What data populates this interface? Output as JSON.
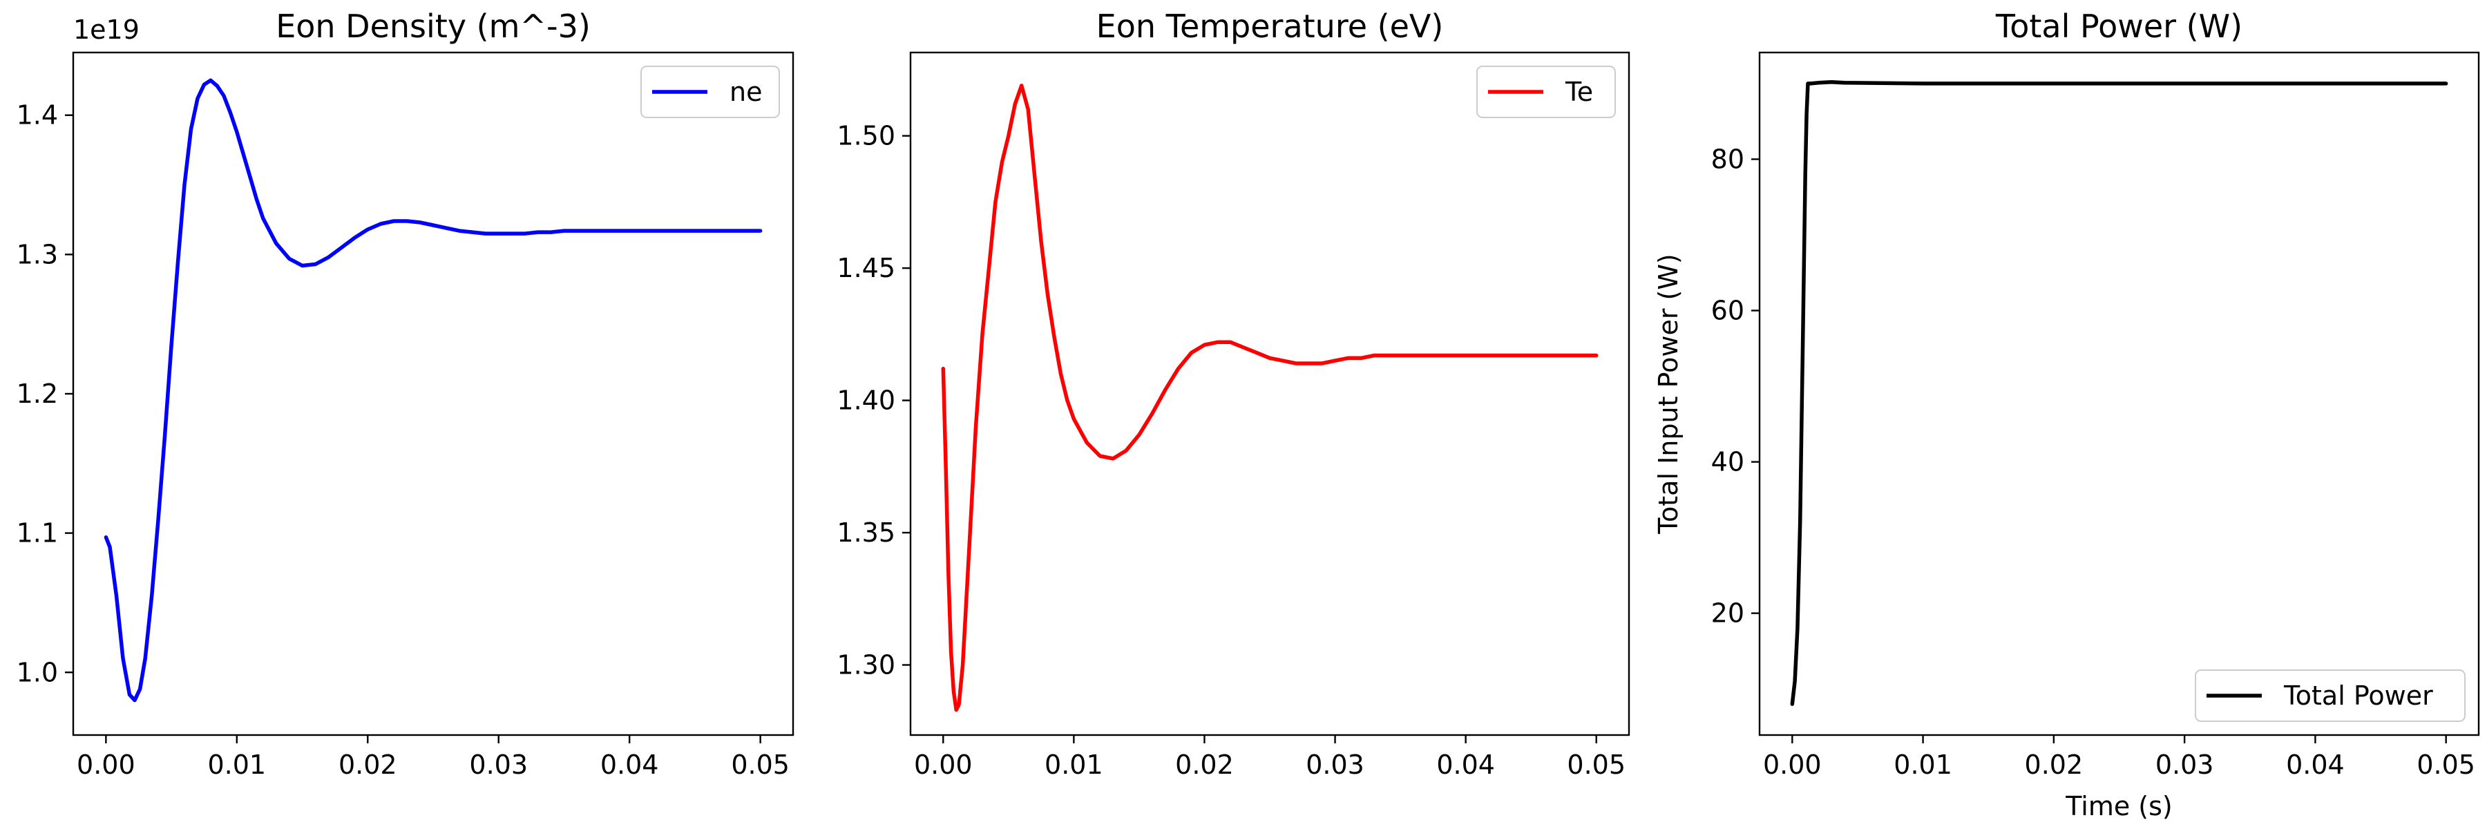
{
  "chart_data": [
    {
      "type": "line",
      "title": "Eon Density (m^-3)",
      "xlabel": "",
      "ylabel": "",
      "offset_text": "1e19",
      "xlim": [
        -0.0025,
        0.0525
      ],
      "ylim": [
        0.955,
        1.445
      ],
      "xticks": [
        0.0,
        0.01,
        0.02,
        0.03,
        0.04,
        0.05
      ],
      "xtick_labels": [
        "0.00",
        "0.01",
        "0.02",
        "0.03",
        "0.04",
        "0.05"
      ],
      "yticks": [
        1.0,
        1.1,
        1.2,
        1.3,
        1.4
      ],
      "ytick_labels": [
        "1.0",
        "1.1",
        "1.2",
        "1.3",
        "1.4"
      ],
      "legend": "top-right",
      "grid": false,
      "series": [
        {
          "name": "ne",
          "color": "#0000ff",
          "x": [
            0.0,
            0.0003,
            0.0008,
            0.0013,
            0.0018,
            0.0022,
            0.0026,
            0.003,
            0.0035,
            0.004,
            0.0045,
            0.005,
            0.0055,
            0.006,
            0.0065,
            0.007,
            0.0075,
            0.008,
            0.0085,
            0.009,
            0.0095,
            0.01,
            0.0105,
            0.011,
            0.0115,
            0.012,
            0.013,
            0.014,
            0.015,
            0.016,
            0.017,
            0.018,
            0.019,
            0.02,
            0.021,
            0.022,
            0.023,
            0.024,
            0.025,
            0.026,
            0.027,
            0.028,
            0.029,
            0.03,
            0.031,
            0.032,
            0.033,
            0.034,
            0.035,
            0.036,
            0.037,
            0.038,
            0.039,
            0.04,
            0.041,
            0.042,
            0.043,
            0.044,
            0.045,
            0.046,
            0.047,
            0.048,
            0.049,
            0.05
          ],
          "y": [
            1.097,
            1.09,
            1.055,
            1.01,
            0.984,
            0.98,
            0.988,
            1.01,
            1.055,
            1.11,
            1.17,
            1.235,
            1.295,
            1.35,
            1.39,
            1.412,
            1.422,
            1.425,
            1.421,
            1.414,
            1.402,
            1.388,
            1.372,
            1.356,
            1.34,
            1.326,
            1.308,
            1.297,
            1.292,
            1.293,
            1.298,
            1.305,
            1.312,
            1.318,
            1.322,
            1.324,
            1.324,
            1.323,
            1.321,
            1.319,
            1.317,
            1.316,
            1.315,
            1.315,
            1.315,
            1.315,
            1.316,
            1.316,
            1.317,
            1.317,
            1.317,
            1.317,
            1.317,
            1.317,
            1.317,
            1.317,
            1.317,
            1.317,
            1.317,
            1.317,
            1.317,
            1.317,
            1.317,
            1.317
          ]
        }
      ]
    },
    {
      "type": "line",
      "title": "Eon Temperature (eV)",
      "xlabel": "",
      "ylabel": "",
      "xlim": [
        -0.0025,
        0.0525
      ],
      "ylim": [
        1.2735,
        1.5315
      ],
      "xticks": [
        0.0,
        0.01,
        0.02,
        0.03,
        0.04,
        0.05
      ],
      "xtick_labels": [
        "0.00",
        "0.01",
        "0.02",
        "0.03",
        "0.04",
        "0.05"
      ],
      "yticks": [
        1.3,
        1.35,
        1.4,
        1.45,
        1.5
      ],
      "ytick_labels": [
        "1.30",
        "1.35",
        "1.40",
        "1.45",
        "1.50"
      ],
      "legend": "top-right",
      "grid": false,
      "series": [
        {
          "name": "Te",
          "color": "#ff0000",
          "x": [
            0.0,
            0.0002,
            0.0004,
            0.0006,
            0.0008,
            0.001,
            0.0012,
            0.0015,
            0.002,
            0.0025,
            0.003,
            0.0035,
            0.004,
            0.0045,
            0.005,
            0.0055,
            0.006,
            0.0065,
            0.007,
            0.0075,
            0.008,
            0.0085,
            0.009,
            0.0095,
            0.01,
            0.011,
            0.012,
            0.013,
            0.014,
            0.015,
            0.016,
            0.017,
            0.018,
            0.019,
            0.02,
            0.021,
            0.022,
            0.023,
            0.024,
            0.025,
            0.026,
            0.027,
            0.028,
            0.029,
            0.03,
            0.031,
            0.032,
            0.033,
            0.034,
            0.035,
            0.036,
            0.037,
            0.038,
            0.039,
            0.04,
            0.041,
            0.042,
            0.043,
            0.044,
            0.045,
            0.046,
            0.047,
            0.048,
            0.049,
            0.05
          ],
          "y": [
            1.412,
            1.375,
            1.335,
            1.305,
            1.29,
            1.283,
            1.285,
            1.3,
            1.345,
            1.39,
            1.425,
            1.45,
            1.475,
            1.49,
            1.5,
            1.512,
            1.519,
            1.51,
            1.485,
            1.46,
            1.44,
            1.424,
            1.41,
            1.4,
            1.393,
            1.384,
            1.379,
            1.378,
            1.381,
            1.387,
            1.395,
            1.404,
            1.412,
            1.418,
            1.421,
            1.422,
            1.422,
            1.42,
            1.418,
            1.416,
            1.415,
            1.414,
            1.414,
            1.414,
            1.415,
            1.416,
            1.416,
            1.417,
            1.417,
            1.417,
            1.417,
            1.417,
            1.417,
            1.417,
            1.417,
            1.417,
            1.417,
            1.417,
            1.417,
            1.417,
            1.417,
            1.417,
            1.417,
            1.417,
            1.417
          ]
        }
      ]
    },
    {
      "type": "line",
      "title": "Total Power (W)",
      "xlabel": "Time (s)",
      "ylabel": "Total Input Power (W)",
      "xlim": [
        -0.0025,
        0.0525
      ],
      "ylim": [
        3.9,
        94.1
      ],
      "xticks": [
        0.0,
        0.01,
        0.02,
        0.03,
        0.04,
        0.05
      ],
      "xtick_labels": [
        "0.00",
        "0.01",
        "0.02",
        "0.03",
        "0.04",
        "0.05"
      ],
      "yticks": [
        20,
        40,
        60,
        80
      ],
      "ytick_labels": [
        "20",
        "40",
        "60",
        "80"
      ],
      "legend": "bottom-right",
      "grid": false,
      "series": [
        {
          "name": "Total Power",
          "color": "#000000",
          "x": [
            0.0,
            0.0002,
            0.0004,
            0.0006,
            0.0008,
            0.001,
            0.0011,
            0.0012,
            0.0014,
            0.002,
            0.003,
            0.004,
            0.01,
            0.02,
            0.03,
            0.04,
            0.05
          ],
          "y": [
            8.0,
            11.0,
            18.0,
            32.0,
            55.0,
            78.0,
            86.0,
            90.0,
            90.0,
            90.1,
            90.2,
            90.1,
            90.0,
            90.0,
            90.0,
            90.0,
            90.0
          ]
        }
      ]
    }
  ]
}
